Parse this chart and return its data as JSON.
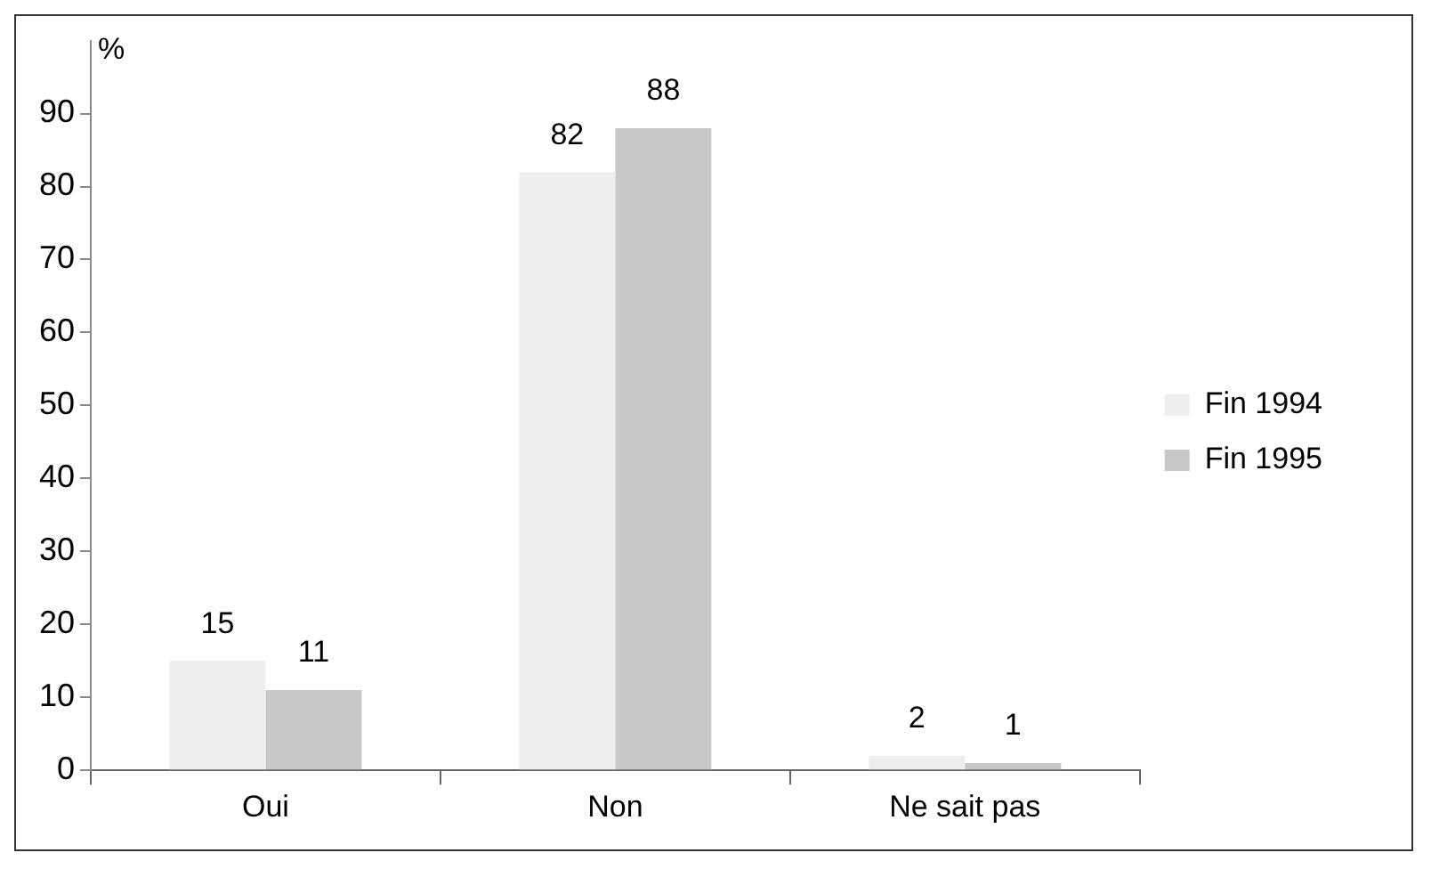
{
  "chart_data": {
    "type": "bar",
    "ylabel": "%",
    "categories": [
      "Oui",
      "Non",
      "Ne sait pas"
    ],
    "series": [
      {
        "name": "Fin 1994",
        "color": "#eeeeee",
        "values": [
          15,
          82,
          2
        ]
      },
      {
        "name": "Fin 1995",
        "color": "#c8c8c8",
        "values": [
          11,
          88,
          1
        ]
      }
    ],
    "ylim": [
      0,
      100
    ],
    "yticks": [
      0,
      10,
      20,
      30,
      40,
      50,
      60,
      70,
      80,
      90
    ],
    "grid": false,
    "legend": "right",
    "data_labels": true
  }
}
